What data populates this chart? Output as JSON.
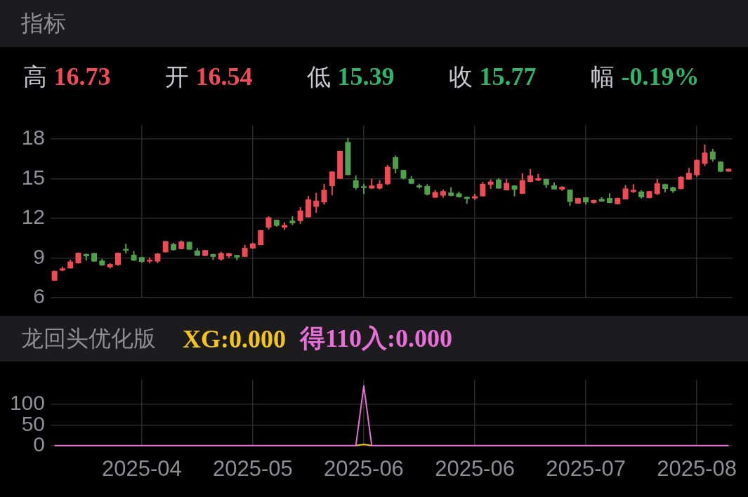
{
  "chart_data": [
    {
      "type": "candlestick",
      "title": "指标",
      "annotations": [
        "高 16.73",
        "开 16.54",
        "低 15.39",
        "收 15.77",
        "幅 -0.19%"
      ],
      "categories": [
        null,
        null,
        null,
        null,
        null,
        null,
        null,
        null,
        null,
        null,
        null,
        "2025-04",
        null,
        null,
        null,
        null,
        null,
        null,
        null,
        null,
        null,
        null,
        null,
        null,
        null,
        "2025-05",
        null,
        null,
        null,
        null,
        null,
        null,
        null,
        null,
        null,
        null,
        null,
        null,
        null,
        "2025-06",
        null,
        null,
        null,
        null,
        null,
        null,
        null,
        null,
        null,
        null,
        null,
        null,
        null,
        "2025-06",
        null,
        null,
        null,
        null,
        null,
        null,
        null,
        null,
        null,
        null,
        null,
        null,
        null,
        "2025-07",
        null,
        null,
        null,
        null,
        null,
        null,
        null,
        null,
        null,
        null,
        null,
        null,
        null,
        "2025-08",
        null,
        null,
        null,
        null
      ],
      "ohlc": [
        [
          7.29,
          8.05,
          7.25,
          8.01
        ],
        [
          8.05,
          8.34,
          8.01,
          8.21
        ],
        [
          8.21,
          8.87,
          8.21,
          8.73
        ],
        [
          8.6,
          9.42,
          8.57,
          9.39
        ],
        [
          9.3,
          9.33,
          8.8,
          9.13
        ],
        [
          9.37,
          9.39,
          8.7,
          8.73
        ],
        [
          8.8,
          8.93,
          8.41,
          8.43
        ],
        [
          8.3,
          8.6,
          8.21,
          8.54
        ],
        [
          8.47,
          9.41,
          8.41,
          9.39
        ],
        [
          9.69,
          10.07,
          9.33,
          9.56
        ],
        [
          9.23,
          9.52,
          8.78,
          8.8
        ],
        [
          9.06,
          9.08,
          8.64,
          8.7
        ],
        [
          8.73,
          9.04,
          8.6,
          8.87
        ],
        [
          8.73,
          9.37,
          8.6,
          9.33
        ],
        [
          9.43,
          10.29,
          9.41,
          10.27
        ],
        [
          10.05,
          10.14,
          9.56,
          9.59
        ],
        [
          9.68,
          10.31,
          9.66,
          10.24
        ],
        [
          10.22,
          10.24,
          9.61,
          9.63
        ],
        [
          9.55,
          9.74,
          9.15,
          9.17
        ],
        [
          9.16,
          9.61,
          9.14,
          9.59
        ],
        [
          9.29,
          9.33,
          8.84,
          9.09
        ],
        [
          8.89,
          9.46,
          8.8,
          9.37
        ],
        [
          9.13,
          9.39,
          9.0,
          9.35
        ],
        [
          9.22,
          9.24,
          8.83,
          9.04
        ],
        [
          9.09,
          9.98,
          9.07,
          9.76
        ],
        [
          9.72,
          10.15,
          9.7,
          10.09
        ],
        [
          9.98,
          11.12,
          9.96,
          11.1
        ],
        [
          11.29,
          12.15,
          11.14,
          12.07
        ],
        [
          11.88,
          11.9,
          11.36,
          11.43
        ],
        [
          11.29,
          11.69,
          11.12,
          11.49
        ],
        [
          11.82,
          12.15,
          11.49,
          11.62
        ],
        [
          11.79,
          12.84,
          11.58,
          12.58
        ],
        [
          12.08,
          13.68,
          12.06,
          13.42
        ],
        [
          12.87,
          13.92,
          12.41,
          13.33
        ],
        [
          13.2,
          14.6,
          13.03,
          14.14
        ],
        [
          14.44,
          15.55,
          13.75,
          15.53
        ],
        [
          14.99,
          17.11,
          14.97,
          17.09
        ],
        [
          17.76,
          18.08,
          15.25,
          15.27
        ],
        [
          14.86,
          15.23,
          14.16,
          14.29
        ],
        [
          14.42,
          14.6,
          13.83,
          14.29
        ],
        [
          14.25,
          14.99,
          14.23,
          14.47
        ],
        [
          14.25,
          14.88,
          14.18,
          14.61
        ],
        [
          14.58,
          16.02,
          14.51,
          15.89
        ],
        [
          16.61,
          16.74,
          15.4,
          15.73
        ],
        [
          15.65,
          15.67,
          14.94,
          15.01
        ],
        [
          14.97,
          15.19,
          14.59,
          14.61
        ],
        [
          14.48,
          14.6,
          14.25,
          14.34
        ],
        [
          14.44,
          14.58,
          13.72,
          13.79
        ],
        [
          13.56,
          14.14,
          13.54,
          13.98
        ],
        [
          13.72,
          14.16,
          13.56,
          14.05
        ],
        [
          13.94,
          14.34,
          13.66,
          13.7
        ],
        [
          13.88,
          14.01,
          13.57,
          13.59
        ],
        [
          13.62,
          13.64,
          13.09,
          13.46
        ],
        [
          13.5,
          13.85,
          13.39,
          13.66
        ],
        [
          13.66,
          14.75,
          13.64,
          14.6
        ],
        [
          14.53,
          14.94,
          14.22,
          14.77
        ],
        [
          14.93,
          15.03,
          14.23,
          14.25
        ],
        [
          14.12,
          14.97,
          14.1,
          14.67
        ],
        [
          14.47,
          14.49,
          13.66,
          14.16
        ],
        [
          13.85,
          15.4,
          13.83,
          14.88
        ],
        [
          14.75,
          15.72,
          14.73,
          15.23
        ],
        [
          14.86,
          15.36,
          14.81,
          15.03
        ],
        [
          14.97,
          14.99,
          14.29,
          14.51
        ],
        [
          14.48,
          14.71,
          14.16,
          14.18
        ],
        [
          14.18,
          14.42,
          14.08,
          14.38
        ],
        [
          14.16,
          14.18,
          12.93,
          13.24
        ],
        [
          13.11,
          13.55,
          13.09,
          13.53
        ],
        [
          13.58,
          13.6,
          13.04,
          13.2
        ],
        [
          13.17,
          13.4,
          13.09,
          13.38
        ],
        [
          13.46,
          13.59,
          13.24,
          13.26
        ],
        [
          13.53,
          13.89,
          13.14,
          13.16
        ],
        [
          13.07,
          13.56,
          13.04,
          13.53
        ],
        [
          13.43,
          14.51,
          13.41,
          14.25
        ],
        [
          13.98,
          14.58,
          13.92,
          14.14
        ],
        [
          14.02,
          14.12,
          13.49,
          13.59
        ],
        [
          13.53,
          14.07,
          13.51,
          14.05
        ],
        [
          13.83,
          14.97,
          13.76,
          14.64
        ],
        [
          14.58,
          14.61,
          13.96,
          14.22
        ],
        [
          14.34,
          14.38,
          13.92,
          14.05
        ],
        [
          14.21,
          15.17,
          14.19,
          15.14
        ],
        [
          14.93,
          15.8,
          14.91,
          15.43
        ],
        [
          15.26,
          16.44,
          15.14,
          16.41
        ],
        [
          16.12,
          17.57,
          15.95,
          16.96
        ],
        [
          17.04,
          17.24,
          16.28,
          16.44
        ],
        [
          16.28,
          16.3,
          15.49,
          15.52
        ],
        [
          15.53,
          15.76,
          15.51,
          15.74
        ]
      ],
      "colors": [
        "#f24957",
        "#f24957",
        "#f24957",
        "#f24957",
        "#4fa04a",
        "#4fa04a",
        "#4fa04a",
        "#f24957",
        "#f24957",
        "#4fa04a",
        "#4fa04a",
        "#4fa04a",
        "#f24957",
        "#f24957",
        "#f24957",
        "#4fa04a",
        "#f24957",
        "#4fa04a",
        "#4fa04a",
        "#f24957",
        "#4fa04a",
        "#f24957",
        "#f24957",
        "#4fa04a",
        "#f24957",
        "#f24957",
        "#f24957",
        "#f24957",
        "#4fa04a",
        "#f24957",
        "#4fa04a",
        "#f24957",
        "#f24957",
        "#f24957",
        "#f24957",
        "#f24957",
        "#f24957",
        "#4fa04a",
        "#4fa04a",
        "#4fa04a",
        "#f24957",
        "#f24957",
        "#f24957",
        "#4fa04a",
        "#4fa04a",
        "#4fa04a",
        "#4fa04a",
        "#4fa04a",
        "#f24957",
        "#f24957",
        "#4fa04a",
        "#4fa04a",
        "#4fa04a",
        "#f24957",
        "#f24957",
        "#f24957",
        "#4fa04a",
        "#f24957",
        "#4fa04a",
        "#f24957",
        "#f24957",
        "#f24957",
        "#4fa04a",
        "#4fa04a",
        "#f24957",
        "#4fa04a",
        "#f24957",
        "#4fa04a",
        "#f24957",
        "#4fa04a",
        "#4fa04a",
        "#f24957",
        "#f24957",
        "#f24957",
        "#4fa04a",
        "#f24957",
        "#f24957",
        "#4fa04a",
        "#4fa04a",
        "#f24957",
        "#f24957",
        "#f24957",
        "#f24957",
        "#4fa04a",
        "#4fa04a",
        "#f24957"
      ],
      "ylim": [
        6,
        19
      ],
      "yticks": [
        6,
        9,
        12,
        15,
        18
      ],
      "grid": true,
      "tick_labels": "y"
    },
    {
      "type": "line",
      "title": "龙回头优化版",
      "annotations": [
        "XG:0.000",
        "得110入:0.000"
      ],
      "categories": [
        null,
        null,
        null,
        null,
        null,
        null,
        null,
        null,
        null,
        null,
        null,
        "2025-04",
        null,
        null,
        null,
        null,
        null,
        null,
        null,
        null,
        null,
        null,
        null,
        null,
        null,
        "2025-05",
        null,
        null,
        null,
        null,
        null,
        null,
        null,
        null,
        null,
        null,
        null,
        null,
        null,
        "2025-06",
        null,
        null,
        null,
        null,
        null,
        null,
        null,
        null,
        null,
        null,
        null,
        null,
        null,
        "2025-06",
        null,
        null,
        null,
        null,
        null,
        null,
        null,
        null,
        null,
        null,
        null,
        null,
        null,
        "2025-07",
        null,
        null,
        null,
        null,
        null,
        null,
        null,
        null,
        null,
        null,
        null,
        null,
        null,
        "2025-08",
        null,
        null,
        null,
        null
      ],
      "series": [
        {
          "color": "#f5c518",
          "values": [
            null,
            null,
            null,
            null,
            null,
            null,
            null,
            null,
            null,
            null,
            null,
            null,
            null,
            null,
            null,
            null,
            null,
            null,
            null,
            null,
            null,
            null,
            null,
            null,
            null,
            null,
            null,
            null,
            null,
            null,
            null,
            null,
            null,
            null,
            null,
            null,
            null,
            null,
            0,
            3,
            0,
            null,
            null,
            null,
            null,
            null,
            null,
            null,
            null,
            null,
            null,
            null,
            null,
            null,
            null,
            null,
            null,
            null,
            null,
            null,
            null,
            null,
            null,
            null,
            null,
            null,
            null,
            null,
            null,
            null,
            null,
            null,
            null,
            null,
            null,
            null,
            null,
            null,
            null,
            null,
            null,
            null,
            null,
            null,
            null,
            null
          ]
        },
        {
          "color": "#e86fd8",
          "values": [
            0,
            0,
            0,
            0,
            0,
            0,
            0,
            0,
            0,
            0,
            0,
            0,
            0,
            0,
            0,
            0,
            0,
            0,
            0,
            0,
            0,
            0,
            0,
            0,
            0,
            0,
            0,
            0,
            0,
            0,
            0,
            0,
            0,
            0,
            0,
            0,
            0,
            0,
            0,
            145,
            0,
            0,
            0,
            0,
            0,
            0,
            0,
            0,
            0,
            0,
            0,
            0,
            0,
            0,
            0,
            0,
            0,
            0,
            0,
            0,
            0,
            0,
            0,
            0,
            0,
            0,
            0,
            0,
            0,
            0,
            0,
            0,
            0,
            0,
            0,
            0,
            0,
            0,
            0,
            0,
            0,
            0,
            0,
            0,
            0,
            0
          ]
        }
      ],
      "ylim": [
        0,
        160
      ],
      "yticks": [
        0,
        50,
        100
      ],
      "grid": true,
      "marker": "none"
    }
  ]
}
